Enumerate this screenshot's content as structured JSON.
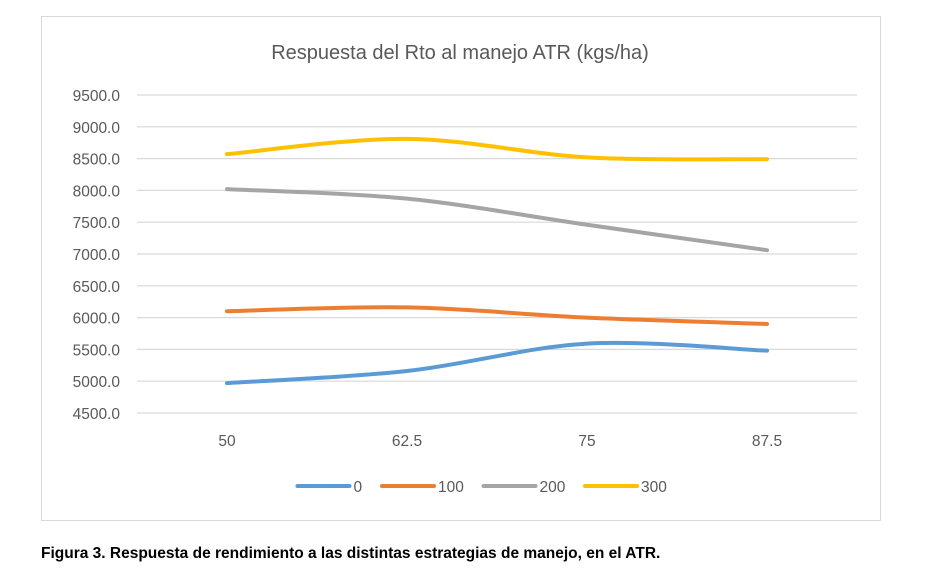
{
  "chart_data": {
    "type": "line",
    "title": "Respuesta del Rto al manejo ATR (kgs/ha)",
    "xlabel": "",
    "ylabel": "",
    "categories": [
      "50",
      "62.5",
      "75",
      "87.5"
    ],
    "ylim": [
      4500,
      9500
    ],
    "yticks": [
      "4500.0",
      "5000.0",
      "5500.0",
      "6000.0",
      "6500.0",
      "7000.0",
      "7500.0",
      "8000.0",
      "8500.0",
      "9000.0",
      "9500.0"
    ],
    "grid": true,
    "smooth": true,
    "legend_position": "bottom",
    "series": [
      {
        "name": "0",
        "color": "#5b9bd5",
        "values": [
          4970,
          5160,
          5590,
          5480
        ]
      },
      {
        "name": "100",
        "color": "#ed7d31",
        "values": [
          6100,
          6160,
          6000,
          5900
        ]
      },
      {
        "name": "200",
        "color": "#a5a5a5",
        "values": [
          8020,
          7870,
          7460,
          7060
        ]
      },
      {
        "name": "300",
        "color": "#ffc000",
        "values": [
          8570,
          8810,
          8520,
          8490
        ]
      }
    ]
  },
  "caption": "Figura 3. Respuesta de rendimiento a las distintas estrategias de manejo, en el ATR."
}
